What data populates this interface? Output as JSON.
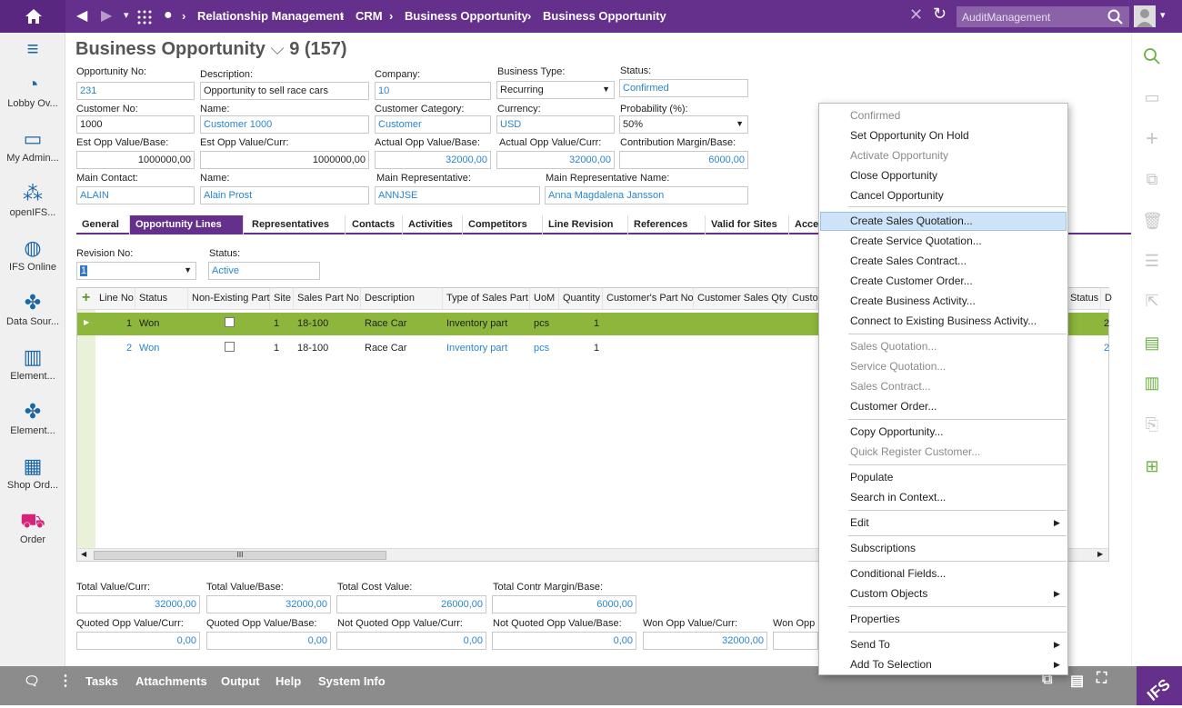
{
  "breadcrumb": [
    "Relationship Management",
    "CRM",
    "Business Opportunity",
    "Business Opportunity"
  ],
  "search_placeholder": "AuditManagement",
  "sidebar": [
    "Lobby Ov...",
    "My Admin...",
    "openIFS...",
    "IFS Online",
    "Data Sour...",
    "Element...",
    "Element...",
    "Shop Ord...",
    "Order"
  ],
  "page_title": "Business Opportunity",
  "record_count": "9 (157)",
  "fields": {
    "opp_no": {
      "label": "Opportunity No:",
      "value": "231"
    },
    "desc": {
      "label": "Description:",
      "value": "Opportunity to sell race cars"
    },
    "company": {
      "label": "Company:",
      "value": "10"
    },
    "btype": {
      "label": "Business Type:",
      "value": "Recurring"
    },
    "status": {
      "label": "Status:",
      "value": "Confirmed"
    },
    "cust_no": {
      "label": "Customer No:",
      "value": "1000"
    },
    "name": {
      "label": "Name:",
      "value": "Customer 1000"
    },
    "cust_cat": {
      "label": "Customer Category:",
      "value": "Customer"
    },
    "currency": {
      "label": "Currency:",
      "value": "USD"
    },
    "prob": {
      "label": "Probability (%):",
      "value": "50%"
    },
    "est_base": {
      "label": "Est Opp Value/Base:",
      "value": "1000000,00"
    },
    "est_curr": {
      "label": "Est Opp Value/Curr:",
      "value": "1000000,00"
    },
    "act_base": {
      "label": "Actual Opp Value/Base:",
      "value": "32000,00"
    },
    "act_curr": {
      "label": "Actual Opp Value/Curr:",
      "value": "32000,00"
    },
    "contrib": {
      "label": "Contribution Margin/Base:",
      "value": "6000,00"
    },
    "main_contact": {
      "label": "Main Contact:",
      "value": "ALAIN"
    },
    "contact_name": {
      "label": "Name:",
      "value": "Alain Prost"
    },
    "main_rep": {
      "label": "Main Representative:",
      "value": "ANNJSE"
    },
    "rep_name": {
      "label": "Main Representative Name:",
      "value": "Anna Magdalena Jansson"
    }
  },
  "tabs": [
    "General",
    "Opportunity Lines",
    "Representatives",
    "Contacts",
    "Activities",
    "Competitors",
    "Line Revision",
    "References",
    "Valid for Sites",
    "Acce"
  ],
  "revision": {
    "label": "Revision No:",
    "value": "1",
    "status_label": "Status:",
    "status_value": "Active"
  },
  "grid": {
    "headers": [
      "Line No",
      "Status",
      "Non-Existing Part",
      "Site",
      "Sales Part No",
      "Description",
      "Type of Sales Part",
      "UoM",
      "Quantity",
      "Customer's Part No",
      "Customer Sales Qty",
      "Custo",
      "Status",
      "D"
    ],
    "rows": [
      {
        "line": "1",
        "status": "Won",
        "site": "1",
        "part": "18-100",
        "desc": "Race Car",
        "type": "Inventory part",
        "uom": "pcs",
        "qty": "1",
        "end": "2"
      },
      {
        "line": "2",
        "status": "Won",
        "site": "1",
        "part": "18-100",
        "desc": "Race Car",
        "type": "Inventory part",
        "uom": "pcs",
        "qty": "1",
        "end": "2"
      }
    ],
    "scroll_mark": "III"
  },
  "totals": [
    {
      "label": "Total Value/Curr:",
      "value": "32000,00"
    },
    {
      "label": "Total Value/Base:",
      "value": "32000,00"
    },
    {
      "label": "Total Cost Value:",
      "value": "26000,00"
    },
    {
      "label": "Total Contr Margin/Base:",
      "value": "6000,00"
    },
    {
      "label": "Quoted Opp Value/Curr:",
      "value": "0,00"
    },
    {
      "label": "Quoted Opp Value/Base:",
      "value": "0,00"
    },
    {
      "label": "Not Quoted Opp Value/Curr:",
      "value": "0,00"
    },
    {
      "label": "Not Quoted Opp Value/Base:",
      "value": "0,00"
    },
    {
      "label": "Won Opp Value/Curr:",
      "value": "32000,00"
    },
    {
      "label": "Won Opp",
      "value": ""
    }
  ],
  "context_menu": [
    "Confirmed",
    "Set Opportunity On Hold",
    "Activate Opportunity",
    "Close Opportunity",
    "Cancel Opportunity",
    "Create Sales Quotation...",
    "Create Service Quotation...",
    "Create Sales Contract...",
    "Create Customer Order...",
    "Create Business Activity...",
    "Connect to Existing Business Activity...",
    "Sales Quotation...",
    "Service Quotation...",
    "Sales Contract...",
    "Customer Order...",
    "Copy Opportunity...",
    "Quick Register Customer...",
    "Populate",
    "Search in Context...",
    "Edit",
    "Subscriptions",
    "Conditional Fields...",
    "Custom Objects",
    "Properties",
    "Send To",
    "Add To Selection"
  ],
  "footer": [
    "Tasks",
    "Attachments",
    "Output",
    "Help",
    "System Info"
  ],
  "colors": {
    "brand": "#652f8c",
    "selected_row": "#8cb63c",
    "link": "#2a86c9",
    "menu_highlight": "#cde3f7",
    "icon_green": "#6ab042"
  }
}
